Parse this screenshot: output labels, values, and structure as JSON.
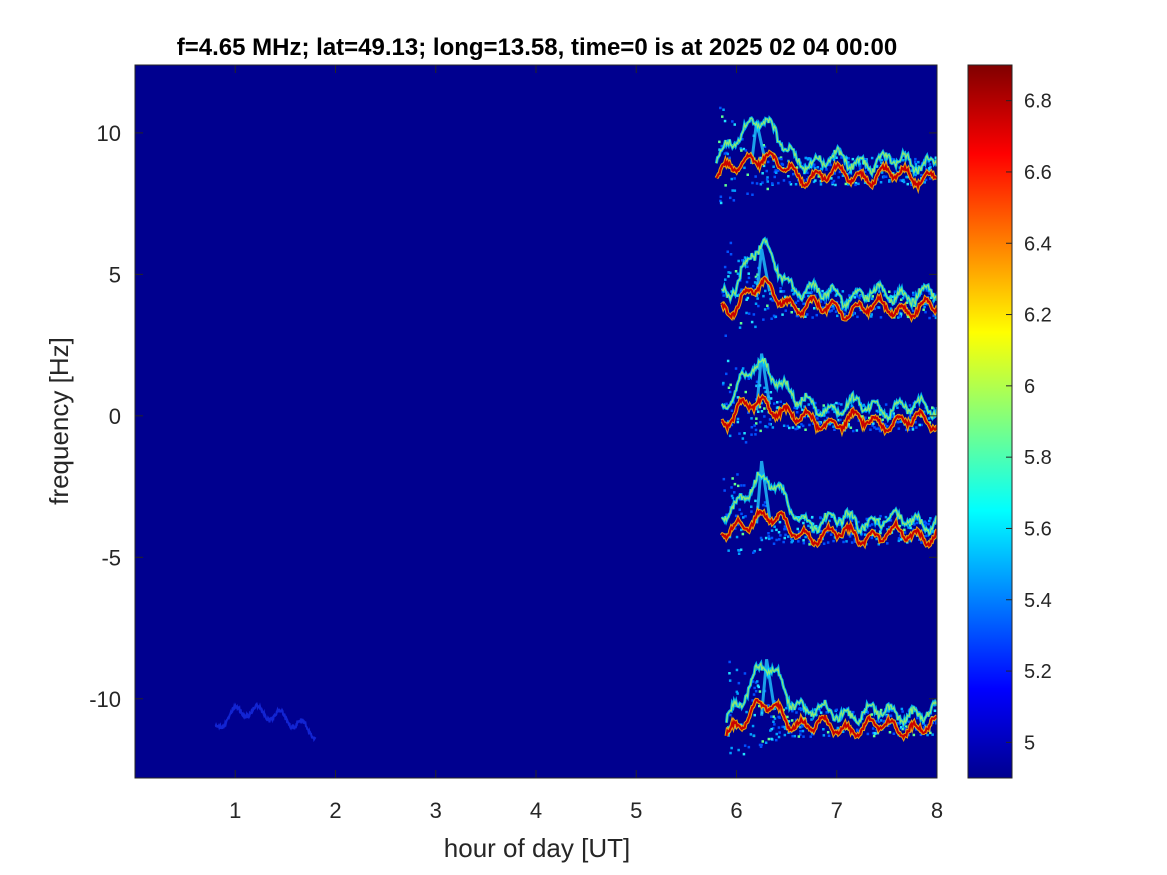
{
  "chart_data": {
    "type": "heatmap",
    "title": "f=4.65 MHz;  lat=49.13; long=13.58, time=0 is at 2025 02 04 00:00",
    "xlabel": "hour of day [UT]",
    "ylabel": "frequency [Hz]",
    "xlim": [
      0,
      8
    ],
    "ylim": [
      -12.8,
      12.4
    ],
    "x_ticks": [
      "1",
      "2",
      "3",
      "4",
      "5",
      "6",
      "7",
      "8"
    ],
    "y_ticks": [
      "10",
      "5",
      "0",
      "-5",
      "-10"
    ],
    "colormap": "jet",
    "background_color": "#00008F",
    "colorbar": {
      "range": [
        4.9,
        6.9
      ],
      "ticks": [
        "6.8",
        "6.6",
        "6.4",
        "6.2",
        "6",
        "5.8",
        "5.6",
        "5.4",
        "5.2",
        "5"
      ]
    },
    "traces": [
      {
        "center_hz": 8.5,
        "start_hour": 5.8,
        "end_hour": 8.0,
        "peak_hz": 10.4
      },
      {
        "center_hz": 3.8,
        "start_hour": 5.85,
        "end_hour": 8.0,
        "peak_hz": 5.9
      },
      {
        "center_hz": -0.2,
        "start_hour": 5.85,
        "end_hour": 8.0,
        "peak_hz": 2.2
      },
      {
        "center_hz": -4.2,
        "start_hour": 5.85,
        "end_hour": 8.0,
        "peak_hz": -1.6
      },
      {
        "center_hz": -11.0,
        "start_hour": 5.9,
        "end_hour": 8.0,
        "peak_hz": -8.6
      },
      {
        "center_hz": -11.0,
        "start_hour": 0.8,
        "end_hour": 1.8,
        "peak_hz": -10.8,
        "faint": true
      }
    ]
  }
}
